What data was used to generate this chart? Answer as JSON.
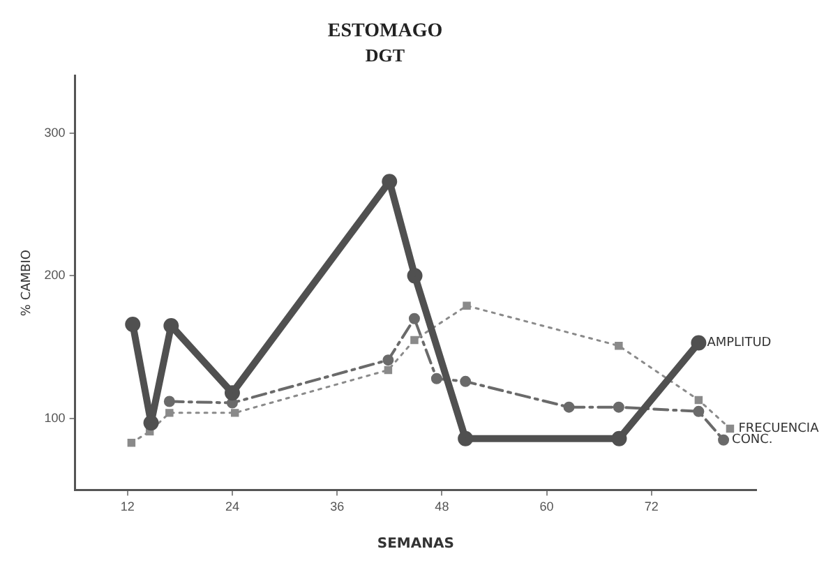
{
  "chart_data": {
    "type": "line",
    "title": "ESTOMAGO",
    "subtitle": "DGT",
    "xlabel": "SEMANAS",
    "ylabel": "% CAMBIO",
    "xlim": [
      6,
      84
    ],
    "xticks": [
      12,
      24,
      36,
      48,
      60,
      72
    ],
    "ylim": [
      50,
      340
    ],
    "yticks": [
      100,
      200,
      300
    ],
    "grid": false,
    "legend": false,
    "series": [
      {
        "name": "AMPLITUD",
        "color": "#505050",
        "line_style": "solid",
        "marker": "circle",
        "x": [
          12.6,
          14.7,
          17,
          24,
          42,
          44.9,
          50.7,
          68.3,
          77.4
        ],
        "values": [
          166,
          97,
          165,
          118,
          266,
          200,
          86,
          86,
          153
        ]
      },
      {
        "name": "FRECUENCIA",
        "color": "#8a8a8a",
        "line_style": "dotted",
        "marker": "square",
        "x": [
          12.45,
          14.55,
          16.8,
          24.3,
          41.85,
          44.85,
          50.85,
          68.25,
          77.4,
          81
        ],
        "values": [
          83,
          91,
          104,
          104,
          134,
          155,
          179,
          151,
          113,
          93
        ]
      },
      {
        "name": "CONC.",
        "color": "#6a6a6a",
        "line_style": "dashed",
        "marker": "circle",
        "x": [
          16.8,
          24,
          41.85,
          44.85,
          47.4,
          50.7,
          62.55,
          68.25,
          77.4,
          80.25
        ],
        "values": [
          112,
          111,
          141,
          170,
          128,
          126,
          108,
          108,
          105,
          85
        ]
      }
    ]
  }
}
